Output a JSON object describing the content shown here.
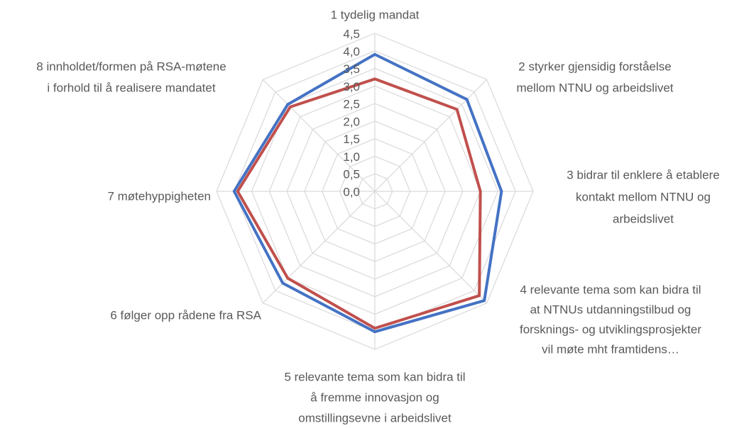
{
  "chart_data": {
    "type": "radar",
    "categories": [
      [
        "1 tydelig mandat"
      ],
      [
        "2 styrker gjensidig forståelse",
        "mellom NTNU og arbeidslivet"
      ],
      [
        "3 bidrar til enklere å etablere",
        "kontakt  mellom NTNU og",
        "arbeidslivet"
      ],
      [
        "4 relevante tema som kan bidra til",
        "at NTNUs utdanningstilbud og",
        "forsknings- og utviklingsprosjekter",
        "vil møte  mht framtidens…"
      ],
      [
        "5  relevante tema som kan bidra til",
        "å fremme innovasjon og",
        "omstillingsevne i arbeidslivet"
      ],
      [
        "6 følger opp rådene fra RSA"
      ],
      [
        "7 møtehyppigheten"
      ],
      [
        "8 innholdet/formen på RSA-møtene",
        "i forhold til å realisere mandatet"
      ]
    ],
    "series": [
      {
        "color": "#4472c4",
        "values": [
          3.9,
          3.7,
          3.6,
          4.4,
          4.0,
          3.7,
          4.0,
          3.5
        ]
      },
      {
        "color": "#c0504d",
        "values": [
          3.2,
          3.3,
          3.0,
          4.2,
          3.9,
          3.5,
          3.9,
          3.4
        ]
      }
    ],
    "rlim": [
      0,
      4.5
    ],
    "rticks": [
      {
        "value": 0,
        "label": "0,0"
      },
      {
        "value": 0.5,
        "label": "0,5"
      },
      {
        "value": 1,
        "label": "1,0"
      },
      {
        "value": 1.5,
        "label": "1,5"
      },
      {
        "value": 2,
        "label": "2,0"
      },
      {
        "value": 2.5,
        "label": "2,5"
      },
      {
        "value": 3,
        "label": "3,0"
      },
      {
        "value": 3.5,
        "label": "3,5"
      },
      {
        "value": 4,
        "label": "4,0"
      },
      {
        "value": 4.5,
        "label": "4,5"
      }
    ],
    "grid": true
  }
}
